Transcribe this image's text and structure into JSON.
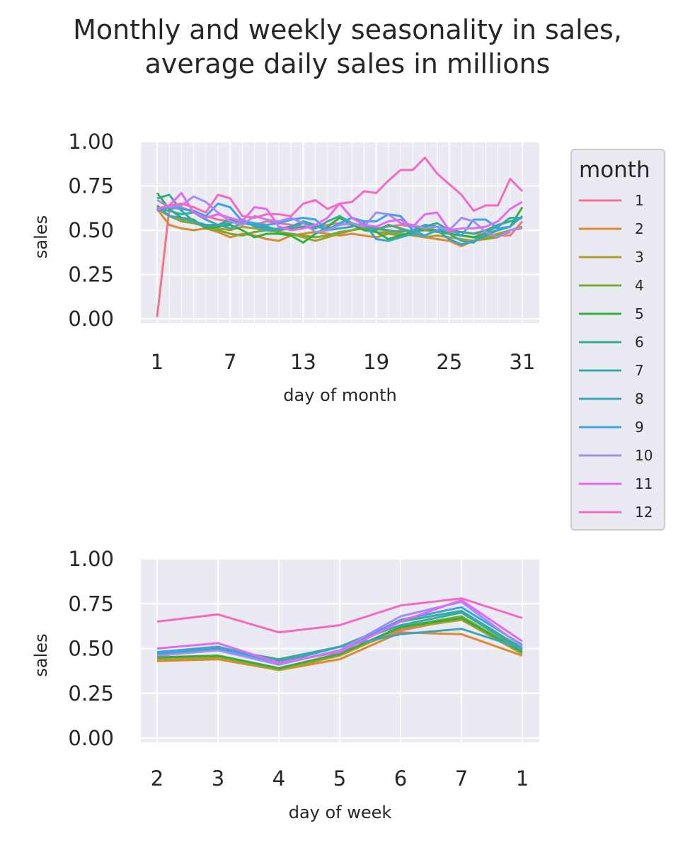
{
  "title": {
    "line1": "Monthly and weekly seasonality in sales,",
    "line2": "average daily sales in millions"
  },
  "chart_data": [
    {
      "type": "line",
      "xlabel": "day of month",
      "ylabel": "sales",
      "ylim": [
        0,
        1
      ],
      "yticks": [
        "0.00",
        "0.25",
        "0.50",
        "0.75",
        "1.00"
      ],
      "xticks": [
        "1",
        "7",
        "13",
        "19",
        "25",
        "31"
      ],
      "x": [
        1,
        2,
        3,
        4,
        5,
        6,
        7,
        8,
        9,
        10,
        11,
        12,
        13,
        14,
        15,
        16,
        17,
        18,
        19,
        20,
        21,
        22,
        23,
        24,
        25,
        26,
        27,
        28,
        29,
        30,
        31
      ],
      "grid": true,
      "series": [
        {
          "name": "1",
          "color": "#f77189",
          "values": [
            0.01,
            0.62,
            0.63,
            0.6,
            0.58,
            0.56,
            0.55,
            0.54,
            0.53,
            0.55,
            0.54,
            0.53,
            0.52,
            0.52,
            0.53,
            0.54,
            0.53,
            0.52,
            0.51,
            0.52,
            0.53,
            0.52,
            0.51,
            0.5,
            0.49,
            0.49,
            0.48,
            0.48,
            0.47,
            0.47,
            0.55
          ]
        },
        {
          "name": "2",
          "color": "#dc8932",
          "values": [
            0.62,
            0.53,
            0.51,
            0.5,
            0.51,
            0.49,
            0.46,
            0.48,
            0.47,
            0.45,
            0.44,
            0.47,
            0.48,
            0.49,
            0.48,
            0.47,
            0.48,
            0.47,
            0.46,
            0.48,
            0.5,
            0.49,
            0.46,
            0.45,
            0.44,
            0.41,
            0.44,
            0.45,
            0.46,
            null,
            null
          ]
        },
        {
          "name": "3",
          "color": "#ae9d31",
          "values": [
            0.62,
            0.58,
            0.56,
            0.54,
            0.53,
            0.51,
            0.5,
            0.52,
            0.51,
            0.5,
            0.49,
            0.48,
            0.46,
            0.44,
            0.46,
            0.48,
            0.5,
            0.52,
            0.51,
            0.49,
            0.48,
            0.47,
            0.46,
            0.47,
            0.46,
            0.45,
            0.44,
            0.46,
            0.48,
            0.5,
            0.52
          ]
        },
        {
          "name": "4",
          "color": "#77ab31",
          "values": [
            0.63,
            0.58,
            0.55,
            0.54,
            0.52,
            0.5,
            0.48,
            0.47,
            0.49,
            0.5,
            0.49,
            0.48,
            0.47,
            0.46,
            0.47,
            0.49,
            0.5,
            0.51,
            0.49,
            0.48,
            0.47,
            0.49,
            0.5,
            0.49,
            0.48,
            0.47,
            0.46,
            0.45,
            0.47,
            0.49,
            null
          ]
        },
        {
          "name": "5",
          "color": "#33b039",
          "values": [
            0.71,
            0.62,
            0.57,
            0.56,
            0.51,
            0.52,
            0.53,
            0.5,
            0.46,
            0.48,
            0.48,
            0.47,
            0.43,
            0.48,
            0.52,
            0.57,
            0.53,
            0.5,
            0.49,
            0.45,
            0.47,
            0.49,
            0.51,
            0.5,
            0.48,
            0.47,
            0.46,
            0.48,
            0.5,
            0.52,
            0.63
          ]
        },
        {
          "name": "6",
          "color": "#36ad8a",
          "values": [
            0.68,
            0.7,
            0.61,
            0.55,
            0.52,
            0.53,
            0.56,
            0.55,
            0.54,
            0.52,
            0.5,
            0.51,
            0.52,
            0.51,
            0.55,
            0.58,
            0.54,
            0.52,
            0.5,
            0.53,
            0.51,
            0.49,
            0.52,
            0.54,
            0.5,
            0.49,
            0.48,
            0.5,
            0.53,
            0.55,
            0.57
          ]
        },
        {
          "name": "7",
          "color": "#38aaac",
          "values": [
            0.62,
            0.61,
            0.59,
            0.6,
            0.56,
            0.53,
            0.51,
            0.54,
            0.53,
            0.51,
            0.5,
            0.52,
            0.54,
            0.52,
            0.51,
            0.53,
            0.54,
            0.52,
            0.51,
            0.5,
            0.49,
            0.5,
            0.53,
            0.52,
            0.48,
            0.44,
            0.43,
            0.49,
            0.52,
            0.57,
            0.57
          ]
        },
        {
          "name": "8",
          "color": "#3aa5c2",
          "values": [
            0.64,
            0.58,
            0.57,
            0.55,
            0.53,
            0.53,
            0.54,
            0.56,
            0.52,
            0.5,
            0.51,
            0.52,
            0.55,
            0.53,
            0.5,
            0.51,
            0.52,
            0.54,
            0.45,
            0.44,
            0.46,
            0.48,
            0.47,
            0.5,
            0.45,
            0.42,
            0.44,
            0.47,
            0.5,
            0.52,
            0.58
          ]
        },
        {
          "name": "9",
          "color": "#3ba3ec",
          "values": [
            0.61,
            0.63,
            0.62,
            0.61,
            0.58,
            0.65,
            0.63,
            0.55,
            0.54,
            0.53,
            0.54,
            0.56,
            0.57,
            0.56,
            0.5,
            0.54,
            0.57,
            0.55,
            0.55,
            0.59,
            0.58,
            0.5,
            0.47,
            0.5,
            0.51,
            0.47,
            0.56,
            0.56,
            0.51,
            0.52,
            null
          ]
        },
        {
          "name": "10",
          "color": "#a48cf4",
          "values": [
            0.67,
            0.63,
            0.64,
            0.69,
            0.66,
            0.6,
            0.55,
            0.53,
            0.58,
            0.56,
            0.55,
            0.57,
            0.54,
            0.49,
            0.5,
            0.53,
            0.54,
            0.52,
            0.6,
            0.59,
            0.54,
            0.53,
            0.51,
            0.52,
            0.5,
            0.57,
            0.55,
            0.49,
            0.46,
            0.5,
            0.51
          ]
        },
        {
          "name": "11",
          "color": "#e866f4",
          "values": [
            0.62,
            0.64,
            0.71,
            0.6,
            0.57,
            0.59,
            0.57,
            0.55,
            0.63,
            0.62,
            0.52,
            0.5,
            0.51,
            0.53,
            0.57,
            0.65,
            0.57,
            0.53,
            0.52,
            0.55,
            0.56,
            0.52,
            0.59,
            0.6,
            0.5,
            0.51,
            0.51,
            0.52,
            0.55,
            0.62,
            0.66
          ]
        },
        {
          "name": "12",
          "color": "#f668c2",
          "values": [
            0.62,
            0.64,
            0.65,
            0.63,
            0.6,
            0.7,
            0.68,
            0.58,
            0.57,
            0.59,
            0.59,
            0.58,
            0.65,
            0.67,
            0.62,
            0.65,
            0.66,
            0.72,
            0.71,
            0.78,
            0.84,
            0.84,
            0.91,
            0.82,
            0.76,
            0.7,
            0.61,
            0.64,
            0.64,
            0.79,
            0.72
          ]
        }
      ]
    },
    {
      "type": "line",
      "xlabel": "day of week",
      "ylabel": "sales",
      "ylim": [
        0,
        1
      ],
      "yticks": [
        "0.00",
        "0.25",
        "0.50",
        "0.75",
        "1.00"
      ],
      "categories": [
        "2",
        "3",
        "4",
        "5",
        "6",
        "7",
        "1"
      ],
      "grid": true,
      "series": [
        {
          "name": "1",
          "color": "#f77189",
          "values": [
            0.44,
            0.46,
            0.39,
            0.47,
            0.6,
            0.67,
            0.47
          ]
        },
        {
          "name": "2",
          "color": "#dc8932",
          "values": [
            0.43,
            0.44,
            0.38,
            0.44,
            0.59,
            0.58,
            0.46
          ]
        },
        {
          "name": "3",
          "color": "#ae9d31",
          "values": [
            0.44,
            0.45,
            0.38,
            0.46,
            0.61,
            0.66,
            0.47
          ]
        },
        {
          "name": "4",
          "color": "#77ab31",
          "values": [
            0.45,
            0.46,
            0.39,
            0.47,
            0.62,
            0.68,
            0.48
          ]
        },
        {
          "name": "5",
          "color": "#33b039",
          "values": [
            0.45,
            0.46,
            0.39,
            0.47,
            0.62,
            0.67,
            0.48
          ]
        },
        {
          "name": "6",
          "color": "#36ad8a",
          "values": [
            0.47,
            0.5,
            0.44,
            0.51,
            0.65,
            0.71,
            0.5
          ]
        },
        {
          "name": "7",
          "color": "#38aaac",
          "values": [
            0.48,
            0.51,
            0.43,
            0.51,
            0.63,
            0.7,
            0.49
          ]
        },
        {
          "name": "8",
          "color": "#3aa5c2",
          "values": [
            0.47,
            0.49,
            0.42,
            0.51,
            0.58,
            0.61,
            0.5
          ]
        },
        {
          "name": "9",
          "color": "#3ba3ec",
          "values": [
            0.48,
            0.51,
            0.41,
            0.49,
            0.66,
            0.73,
            0.52
          ]
        },
        {
          "name": "10",
          "color": "#a48cf4",
          "values": [
            0.46,
            0.49,
            0.41,
            0.49,
            0.68,
            0.76,
            0.51
          ]
        },
        {
          "name": "11",
          "color": "#e866f4",
          "values": [
            0.5,
            0.53,
            0.42,
            0.48,
            0.65,
            0.77,
            0.54
          ]
        },
        {
          "name": "12",
          "color": "#f668c2",
          "values": [
            0.65,
            0.69,
            0.59,
            0.63,
            0.74,
            0.78,
            0.67
          ]
        }
      ]
    }
  ],
  "legend": {
    "title": "month",
    "placement": "right",
    "entries": [
      "1",
      "2",
      "3",
      "4",
      "5",
      "6",
      "7",
      "8",
      "9",
      "10",
      "11",
      "12"
    ]
  },
  "style": {
    "panel_bg": "#eaeaf2",
    "grid_color": "#ffffff",
    "legend_border": "#cccccc"
  }
}
